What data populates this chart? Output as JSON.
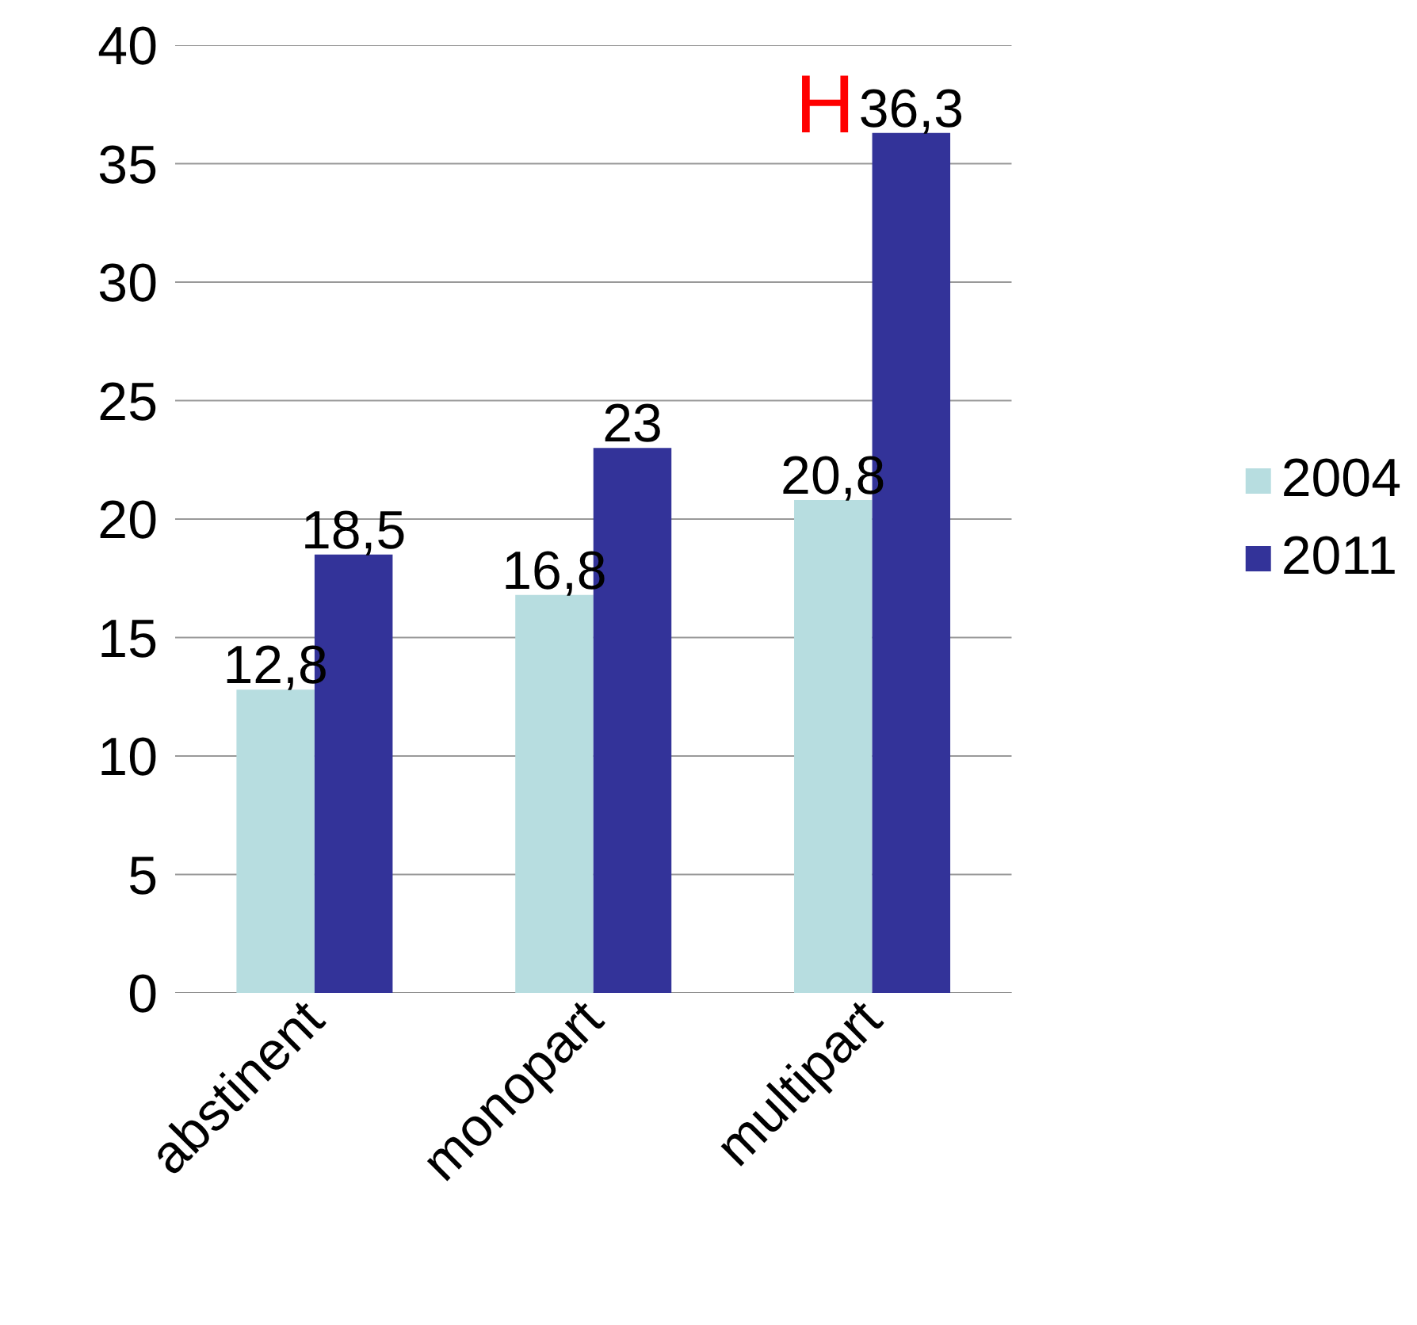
{
  "chart_data": {
    "type": "bar",
    "categories": [
      "abstinent",
      "monopart",
      "multipart"
    ],
    "series": [
      {
        "name": "2004",
        "color": "#b7dde0",
        "values": [
          12.8,
          16.8,
          20.8
        ],
        "value_labels": [
          "12,8",
          "16,8",
          "20,8"
        ]
      },
      {
        "name": "2011",
        "color": "#333399",
        "values": [
          18.5,
          23,
          36.3
        ],
        "value_labels": [
          "18,5",
          "23",
          "36,3"
        ]
      }
    ],
    "ylim": [
      0,
      40
    ],
    "yticks": [
      0,
      5,
      10,
      15,
      20,
      25,
      30,
      35,
      40
    ],
    "grid": "y",
    "legend": "right",
    "annotations": [
      "H"
    ]
  }
}
